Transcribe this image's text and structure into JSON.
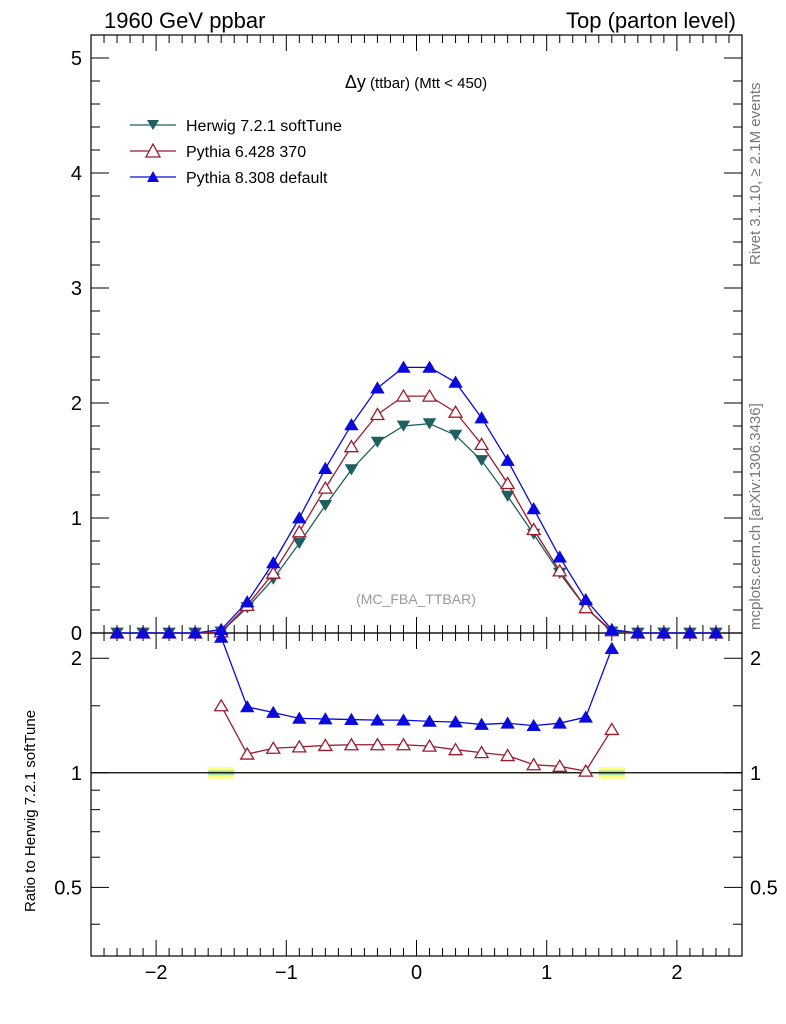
{
  "header": {
    "left_label": "1960 GeV ppbar",
    "right_label": "Top (parton level)"
  },
  "side_labels": {
    "rivet": "Rivet 3.1.10, ≥ 2.1M events",
    "mcplots": "mcplots.cern.ch [arXiv:1306.3436]"
  },
  "chart_data": {
    "type": "line",
    "title_main": "Δy",
    "title_sub": " (ttbar) (Mtt < 450)",
    "watermark": "(MC_FBA_TTBAR)",
    "ratio_ylabel": "Ratio to Herwig 7.2.1 softTune",
    "xlim": [
      -2.5,
      2.5
    ],
    "main_ylim": [
      0,
      5.2
    ],
    "ratio_ylim": [
      0.33,
      2.33
    ],
    "x_ticks": [
      -2,
      -1,
      0,
      1,
      2
    ],
    "x_tick_labels": [
      "−2",
      "−1",
      "0",
      "1",
      "2"
    ],
    "main_y_ticks": [
      0,
      1,
      2,
      3,
      4,
      5
    ],
    "main_y_tick_labels": [
      "0",
      "1",
      "2",
      "3",
      "4",
      "5"
    ],
    "ratio_y_ticks": [
      0.5,
      1,
      2
    ],
    "ratio_y_tick_labels": [
      "0.5",
      "1",
      "2"
    ],
    "x": [
      -2.3,
      -2.1,
      -1.9,
      -1.7,
      -1.5,
      -1.3,
      -1.1,
      -0.9,
      -0.7,
      -0.5,
      -0.3,
      -0.1,
      0.1,
      0.3,
      0.5,
      0.7,
      0.9,
      1.1,
      1.3,
      1.5,
      1.7,
      1.9,
      2.1,
      2.3
    ],
    "legend_position": "top-left",
    "series": [
      {
        "name": "Herwig 7.2.1 softTune",
        "color": "#1f5f60",
        "marker": "triangle-down-filled",
        "values": [
          0,
          0,
          0,
          0,
          0.01,
          0.22,
          0.47,
          0.78,
          1.11,
          1.42,
          1.66,
          1.8,
          1.82,
          1.72,
          1.5,
          1.19,
          0.86,
          0.52,
          0.22,
          0.01,
          0,
          0,
          0,
          0
        ],
        "ratio": [
          null,
          null,
          null,
          null,
          null,
          null,
          null,
          null,
          null,
          null,
          null,
          null,
          null,
          null,
          null,
          null,
          null,
          null,
          null,
          null,
          null,
          null,
          null,
          null
        ]
      },
      {
        "name": "Pythia 6.428 370",
        "color": "#9b1b2e",
        "marker": "triangle-up-open",
        "values": [
          0,
          0,
          0,
          0,
          0.01,
          0.24,
          0.52,
          0.88,
          1.26,
          1.62,
          1.9,
          2.06,
          2.06,
          1.92,
          1.64,
          1.3,
          0.9,
          0.54,
          0.22,
          0.02,
          0,
          0,
          0,
          0
        ],
        "ratio": [
          null,
          null,
          null,
          null,
          1.5,
          1.12,
          1.16,
          1.17,
          1.18,
          1.185,
          1.185,
          1.185,
          1.175,
          1.15,
          1.13,
          1.11,
          1.05,
          1.04,
          1.01,
          1.3,
          null,
          null,
          null,
          null
        ]
      },
      {
        "name": "Pythia 8.308 default",
        "color": "#0a0adc",
        "marker": "triangle-up-filled",
        "values": [
          0,
          0,
          0,
          0,
          0.03,
          0.27,
          0.61,
          1.0,
          1.43,
          1.81,
          2.13,
          2.31,
          2.31,
          2.18,
          1.87,
          1.5,
          1.08,
          0.66,
          0.29,
          0.03,
          0,
          0,
          0,
          0
        ],
        "ratio": [
          null,
          null,
          null,
          null,
          2.27,
          1.49,
          1.44,
          1.39,
          1.385,
          1.38,
          1.375,
          1.375,
          1.365,
          1.36,
          1.34,
          1.35,
          1.33,
          1.35,
          1.4,
          2.12,
          null,
          null,
          null,
          null
        ]
      }
    ],
    "ratio_band": {
      "color_inner": "#a6e0a6",
      "color_outer": "#ffff7a"
    }
  }
}
